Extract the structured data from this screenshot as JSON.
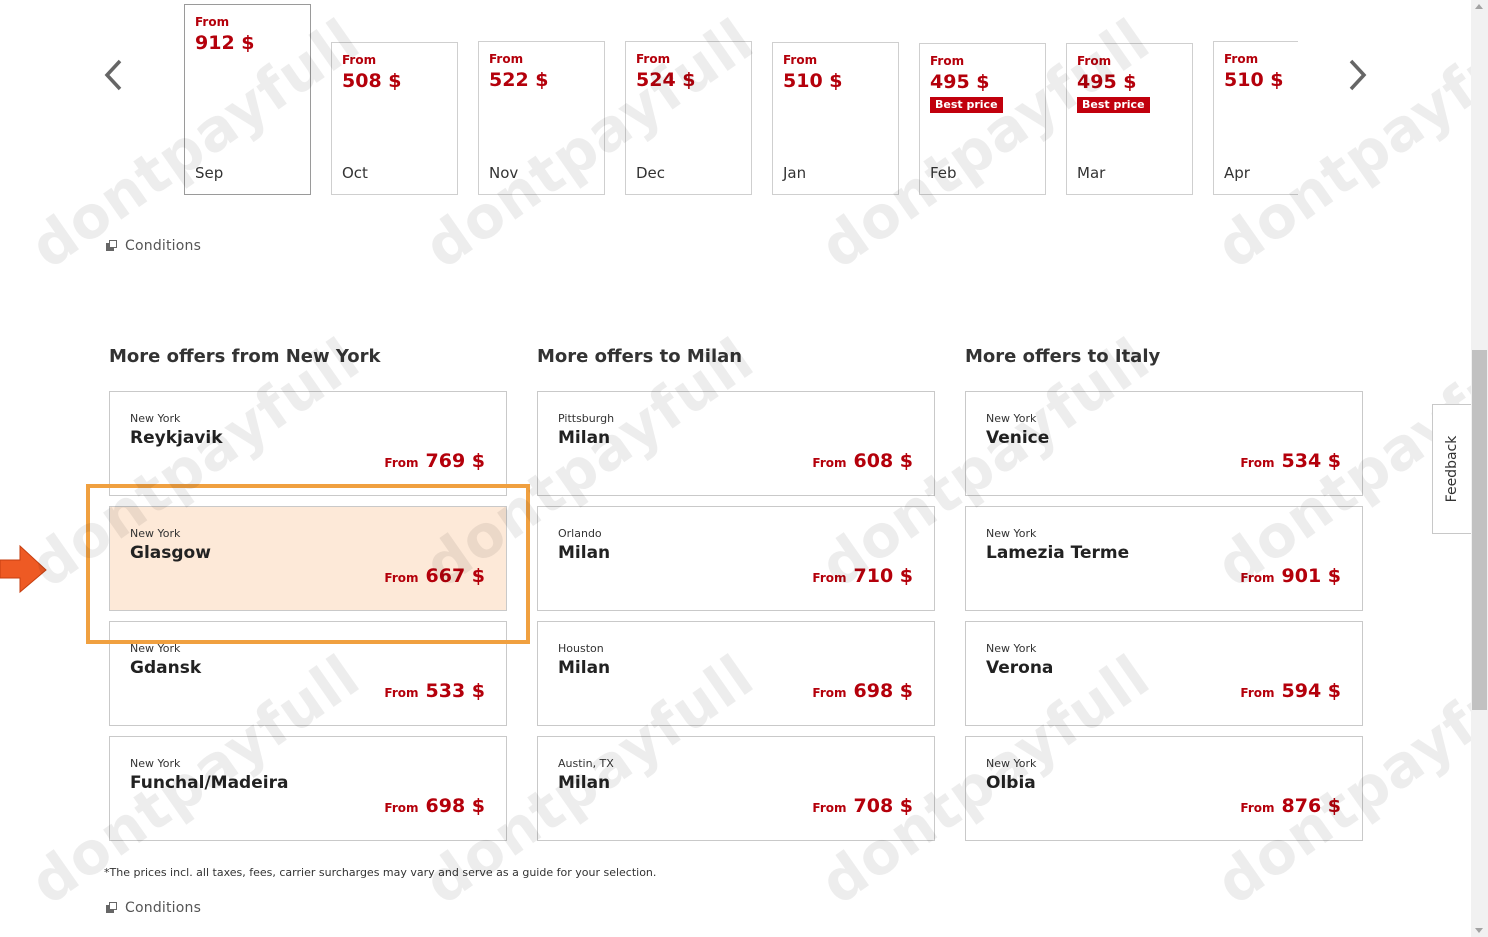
{
  "months": [
    {
      "from": "From",
      "price": "912 $",
      "month": "Sep",
      "badge": ""
    },
    {
      "from": "From",
      "price": "508 $",
      "month": "Oct",
      "badge": ""
    },
    {
      "from": "From",
      "price": "522 $",
      "month": "Nov",
      "badge": ""
    },
    {
      "from": "From",
      "price": "524 $",
      "month": "Dec",
      "badge": ""
    },
    {
      "from": "From",
      "price": "510 $",
      "month": "Jan",
      "badge": ""
    },
    {
      "from": "From",
      "price": "495 $",
      "month": "Feb",
      "badge": "Best price"
    },
    {
      "from": "From",
      "price": "495 $",
      "month": "Mar",
      "badge": "Best price"
    },
    {
      "from": "From",
      "price": "510 $",
      "month": "Apr",
      "badge": ""
    }
  ],
  "conditions_label": "Conditions",
  "offer_columns": [
    {
      "title": "More offers from New York",
      "offers": [
        {
          "origin": "New York",
          "destination": "Reykjavik",
          "from": "From",
          "price": "769 $"
        },
        {
          "origin": "New York",
          "destination": "Glasgow",
          "from": "From",
          "price": "667 $"
        },
        {
          "origin": "New York",
          "destination": "Gdansk",
          "from": "From",
          "price": "533 $"
        },
        {
          "origin": "New York",
          "destination": "Funchal/Madeira",
          "from": "From",
          "price": "698 $"
        }
      ]
    },
    {
      "title": "More offers to Milan",
      "offers": [
        {
          "origin": "Pittsburgh",
          "destination": "Milan",
          "from": "From",
          "price": "608 $"
        },
        {
          "origin": "Orlando",
          "destination": "Milan",
          "from": "From",
          "price": "710 $"
        },
        {
          "origin": "Houston",
          "destination": "Milan",
          "from": "From",
          "price": "698 $"
        },
        {
          "origin": "Austin, TX",
          "destination": "Milan",
          "from": "From",
          "price": "708 $"
        }
      ]
    },
    {
      "title": "More offers to Italy",
      "offers": [
        {
          "origin": "New York",
          "destination": "Venice",
          "from": "From",
          "price": "534 $"
        },
        {
          "origin": "New York",
          "destination": "Lamezia Terme",
          "from": "From",
          "price": "901 $"
        },
        {
          "origin": "New York",
          "destination": "Verona",
          "from": "From",
          "price": "594 $"
        },
        {
          "origin": "New York",
          "destination": "Olbia",
          "from": "From",
          "price": "876 $"
        }
      ]
    }
  ],
  "footnote": "*The prices incl. all taxes, fees, carrier surcharges may vary and serve as a guide for your selection.",
  "feedback_label": "Feedback",
  "watermark_text": "dontpayfull",
  "colors": {
    "price_red": "#b4000b",
    "badge_red": "#c1000d",
    "highlight_orange": "#f0a040",
    "highlight_fill": "#fde9d8",
    "arrow_orange": "#ee5a24"
  },
  "highlighted_offer": "Glasgow"
}
